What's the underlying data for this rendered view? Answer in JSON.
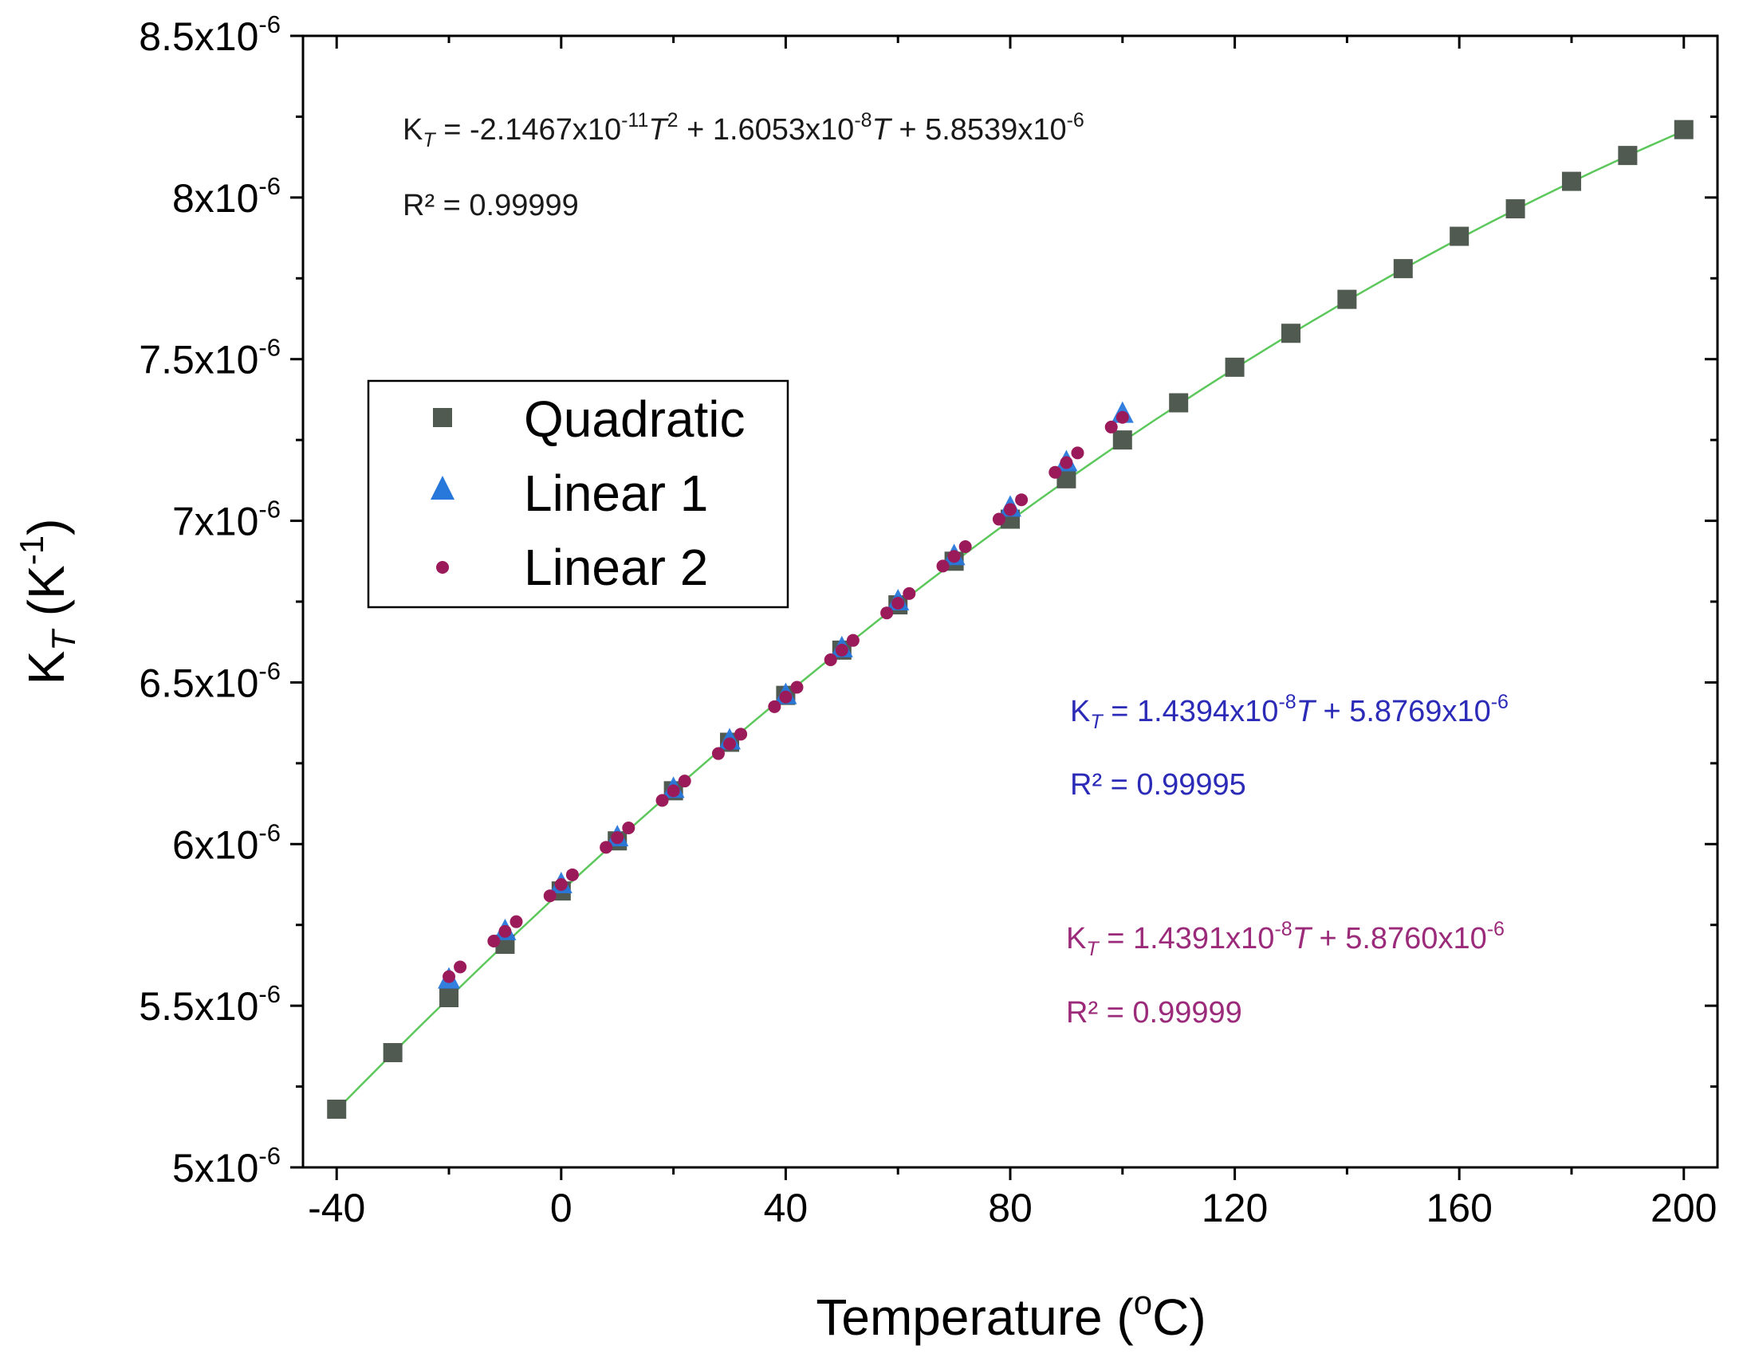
{
  "chart_data": {
    "type": "scatter",
    "x_axis": {
      "title": "Temperature (",
      "title_sup": "o",
      "title_end": "C)",
      "range": [
        -46,
        206
      ],
      "ticks": [
        -40,
        0,
        40,
        80,
        120,
        160,
        200
      ],
      "tick_labels": [
        "-40",
        "0",
        "40",
        "80",
        "120",
        "160",
        "200"
      ]
    },
    "y_axis": {
      "title_main": "K",
      "title_sub": "T",
      "title_rest": " (K",
      "title_sup": "-1",
      "title_end": ")",
      "range": [
        5e-06,
        8.5e-06
      ],
      "ticks": [
        5e-06,
        5.5e-06,
        6e-06,
        6.5e-06,
        7e-06,
        7.5e-06,
        8e-06,
        8.5e-06
      ],
      "tick_label_mantissas": [
        "5x10",
        "5.5x10",
        "6x10",
        "6.5x10",
        "7x10",
        "7.5x10",
        "8x10",
        "8.5x10"
      ],
      "tick_label_exponent": "-6"
    },
    "legend": {
      "position": "upper-left",
      "entries": [
        "Quadratic",
        "Linear 1",
        "Linear 2"
      ]
    },
    "series": [
      {
        "name": "Quadratic",
        "marker": "square",
        "color": "#505a50",
        "x": [
          -40,
          -30,
          -20,
          -10,
          0,
          10,
          20,
          30,
          40,
          50,
          60,
          70,
          80,
          90,
          100,
          110,
          120,
          130,
          140,
          150,
          160,
          170,
          180,
          190,
          200
        ],
        "y": [
          5.18e-06,
          5.355e-06,
          5.525e-06,
          5.69e-06,
          5.855e-06,
          6.01e-06,
          6.165e-06,
          6.315e-06,
          6.46e-06,
          6.6e-06,
          6.74e-06,
          6.875e-06,
          7.005e-06,
          7.13e-06,
          7.25e-06,
          7.365e-06,
          7.475e-06,
          7.58e-06,
          7.685e-06,
          7.78e-06,
          7.88e-06,
          7.965e-06,
          8.05e-06,
          8.13e-06,
          8.21e-06
        ]
      },
      {
        "name": "Linear 1",
        "marker": "triangle",
        "color": "#2878dc",
        "x": [
          -20,
          -10,
          0,
          10,
          20,
          30,
          40,
          50,
          60,
          70,
          80,
          90,
          100
        ],
        "y": [
          5.58e-06,
          5.73e-06,
          5.875e-06,
          6.02e-06,
          6.17e-06,
          6.32e-06,
          6.46e-06,
          6.605e-06,
          6.75e-06,
          6.89e-06,
          7.04e-06,
          7.18e-06,
          7.33e-06
        ]
      },
      {
        "name": "Linear 2",
        "marker": "circle",
        "color": "#9b1a5a",
        "x": [
          -20,
          -18,
          -12,
          -10,
          -8,
          -2,
          0,
          2,
          8,
          10,
          12,
          18,
          20,
          22,
          28,
          30,
          32,
          38,
          40,
          42,
          48,
          50,
          52,
          58,
          60,
          62,
          68,
          70,
          72,
          78,
          80,
          82,
          88,
          90,
          92,
          98,
          100
        ],
        "y": [
          5.59e-06,
          5.62e-06,
          5.7e-06,
          5.73e-06,
          5.76e-06,
          5.84e-06,
          5.875e-06,
          5.905e-06,
          5.99e-06,
          6.02e-06,
          6.05e-06,
          6.135e-06,
          6.165e-06,
          6.195e-06,
          6.28e-06,
          6.31e-06,
          6.34e-06,
          6.425e-06,
          6.455e-06,
          6.485e-06,
          6.57e-06,
          6.6e-06,
          6.63e-06,
          6.715e-06,
          6.745e-06,
          6.775e-06,
          6.86e-06,
          6.89e-06,
          6.92e-06,
          7.005e-06,
          7.035e-06,
          7.065e-06,
          7.15e-06,
          7.18e-06,
          7.21e-06,
          7.29e-06,
          7.32e-06
        ]
      }
    ],
    "fit_curve": {
      "name": "Quadratic fit",
      "color": "#5cc85c",
      "coefficients": {
        "a": -2.1467e-11,
        "b": 1.6053e-08,
        "c": 5.8539e-06
      },
      "x_range": [
        -40,
        200
      ]
    },
    "annotations": {
      "quadratic": {
        "color": "#1a1a1a",
        "line1": [
          "K",
          "T",
          " = -2.1467x10",
          "-11",
          "T",
          "2",
          " + 1.6053x10",
          "-8",
          "T",
          " + 5.8539x10",
          "-6"
        ],
        "line2": "R² = 0.99999"
      },
      "linear1": {
        "color": "#2b2bb8",
        "line1": [
          "K",
          "T",
          " = 1.4394x10",
          "-8",
          "T",
          " + 5.8769x10",
          "-6"
        ],
        "line2": "R² = 0.99995"
      },
      "linear2": {
        "color": "#9b2b7a",
        "line1": [
          "K",
          "T",
          " = 1.4391x10",
          "-8",
          "T",
          " + 5.8760x10",
          "-6"
        ],
        "line2": "R² = 0.99999"
      }
    }
  }
}
